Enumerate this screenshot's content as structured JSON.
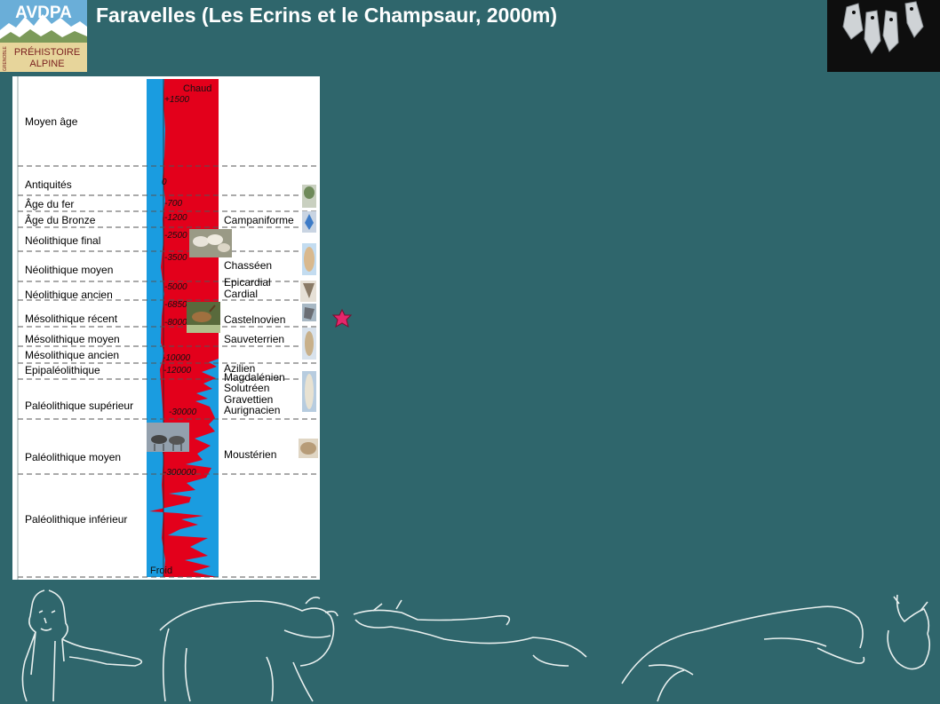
{
  "header": {
    "title": "Faravelles (Les Ecrins et le Champsaur, 2000m)",
    "logo": {
      "name": "AVDPA",
      "line1": "PRÉHISTOIRE",
      "line2": "ALPINE",
      "side": "GRENOBLE"
    }
  },
  "timeline": {
    "periods": [
      "Moyen âge",
      "Antiquités",
      "Âge du fer",
      "Âge du Bronze",
      "Néolithique final",
      "Néolithique moyen",
      "Néolithique ancien",
      "Mésolithique récent",
      "Mésolithique moyen",
      "Mésolithique ancien",
      "Epipaléolithique",
      "Paléolithique supérieur",
      "Paléolithique moyen",
      "Paléolithique inférieur"
    ],
    "climate": {
      "warm": "Chaud",
      "cold": "Froid"
    },
    "dates": [
      "+1500",
      "0",
      "-700",
      "-1200",
      "-2500",
      "-3500",
      "-5000",
      "-6850",
      "-8000",
      "-10000",
      "-12000",
      "-30000",
      "-300000"
    ],
    "cultures": [
      "Campaniforme",
      "Chasséen",
      "Epicardial",
      "Cardial",
      "Castelnovien",
      "Sauveterrien",
      "Azilien",
      "Magdalénien",
      "Solutréen",
      "Gravettien",
      "Aurignacien",
      "Moustérien"
    ],
    "colors": {
      "warm": "#e3001b",
      "cold": "#1a9ce0"
    }
  }
}
